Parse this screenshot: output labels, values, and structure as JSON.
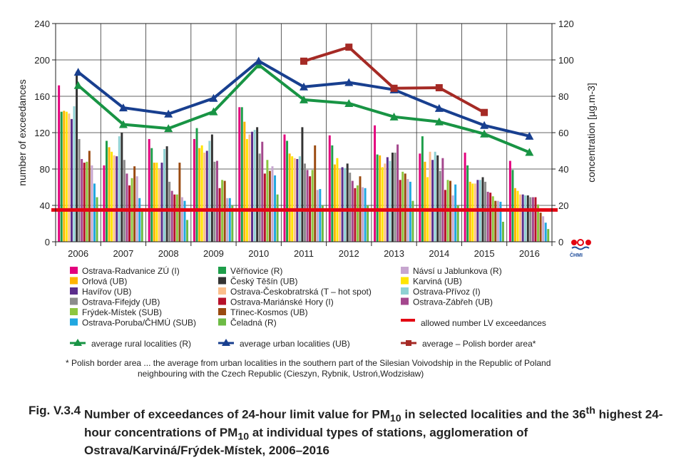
{
  "chart_data": {
    "type": "bar",
    "categories": [
      "2006",
      "2007",
      "2008",
      "2009",
      "2010",
      "2011",
      "2012",
      "2013",
      "2014",
      "2015",
      "2016"
    ],
    "ylabel": "number of exceedances",
    "y2label": "concentration [µg.m-3]",
    "ylim": [
      0,
      240
    ],
    "y2lim": [
      0,
      120
    ],
    "yticks": [
      0,
      40,
      80,
      120,
      160,
      200,
      240
    ],
    "y2ticks": [
      0,
      20,
      40,
      60,
      80,
      100,
      120
    ],
    "grid": true,
    "legend_position": "bottom",
    "bar_series": [
      {
        "name": "Ostrava-Radvanice ZÚ (I)",
        "color": "#e3007d",
        "values": [
          172,
          84,
          113,
          113,
          148,
          118,
          117,
          128,
          97,
          98,
          89
        ]
      },
      {
        "name": "Věřňovice (R)",
        "color": "#1e9e4a",
        "values": [
          143,
          111,
          103,
          125,
          148,
          111,
          106,
          96,
          116,
          84,
          79
        ]
      },
      {
        "name": "Orlová (UB)",
        "color": "#ffb400",
        "values": [
          144,
          104,
          87,
          103,
          132,
          97,
          85,
          95,
          88,
          66,
          59
        ]
      },
      {
        "name": "Karviná (UB)",
        "color": "#ffe500",
        "values": [
          143,
          99,
          87,
          106,
          113,
          94,
          92,
          82,
          71,
          64,
          56
        ]
      },
      {
        "name": "Ostrava-Českobratrská (T – hot spot)",
        "color": "#fbbf8c",
        "values": [
          141,
          95,
          80,
          98,
          118,
          92,
          80,
          86,
          99,
          64,
          52
        ]
      },
      {
        "name": "Havířov (UB)",
        "color": "#5b2d8c",
        "values": [
          135,
          94,
          87,
          100,
          121,
          91,
          82,
          93,
          90,
          68,
          52
        ]
      },
      {
        "name": "Ostrava-Přívoz (I)",
        "color": "#8fd1d3",
        "values": [
          149,
          116,
          102,
          111,
          123,
          94,
          81,
          89,
          99,
          68,
          51
        ]
      },
      {
        "name": "Český Těšín (UB)",
        "color": "#333333",
        "values": [
          187,
          120,
          105,
          118,
          126,
          126,
          86,
          98,
          95,
          71,
          51
        ]
      },
      {
        "name": "Ostrava-Fifejdy (UB)",
        "color": "#8c8c8c",
        "values": [
          113,
          90,
          66,
          88,
          97,
          86,
          76,
          98,
          78,
          66,
          49
        ]
      },
      {
        "name": "Ostrava-Zábřeh (UB)",
        "color": "#a4478d",
        "values": [
          91,
          75,
          56,
          89,
          110,
          79,
          67,
          107,
          92,
          55,
          49
        ]
      },
      {
        "name": "Ostrava-Mariánské Hory (I)",
        "color": "#b7112a",
        "values": [
          87,
          62,
          52,
          59,
          75,
          72,
          59,
          68,
          57,
          54,
          49
        ]
      },
      {
        "name": "Frýdek-Místek (SUB)",
        "color": "#8dc63f",
        "values": [
          88,
          70,
          52,
          68,
          90,
          79,
          62,
          77,
          68,
          50,
          41
        ]
      },
      {
        "name": "Třinec-Kosmos (UB)",
        "color": "#9a4a10",
        "values": [
          100,
          83,
          87,
          67,
          78,
          106,
          72,
          75,
          67,
          45,
          32
        ]
      },
      {
        "name": "Návsí u Jablunkova (R)",
        "color": "#c7a6cf",
        "values": [
          84,
          72,
          49,
          48,
          83,
          57,
          60,
          69,
          51,
          45,
          28
        ]
      },
      {
        "name": "Ostrava-Poruba/ČHMÚ (SUB)",
        "color": "#21a7e0",
        "values": [
          64,
          48,
          45,
          48,
          73,
          58,
          59,
          66,
          63,
          44,
          21
        ]
      },
      {
        "name": "Čeladná (R)",
        "color": "#6dbb45",
        "values": [
          49,
          37,
          24,
          40,
          52,
          40,
          40,
          45,
          40,
          22,
          14
        ]
      }
    ],
    "line_series": [
      {
        "name": "average rural localities (R)",
        "color": "#189444",
        "axis": "right",
        "values": [
          86.0,
          64.5,
          62.3,
          71.5,
          97.3,
          78.1,
          76.1,
          68.7,
          66.0,
          59.3,
          49.2
        ]
      },
      {
        "name": "average urban localities (UB)",
        "color": "#183f8f",
        "axis": "right",
        "values": [
          93.3,
          73.7,
          70.3,
          78.9,
          99.4,
          85.2,
          87.6,
          83.6,
          73.4,
          64.0,
          58.1
        ]
      },
      {
        "name": "average – Polish border area*",
        "color": "#a52a25",
        "axis": "right",
        "values": [
          null,
          null,
          null,
          null,
          null,
          99.3,
          107.0,
          84.4,
          84.7,
          71.1,
          null
        ]
      }
    ],
    "limit_line": {
      "name": "allowed number LV exceedances",
      "color": "#e30613",
      "value": 35
    }
  },
  "logo": {
    "text": "ČHMI"
  },
  "footnote": {
    "line1": "* Polish border area ... the average from urban localities in the southern part of the Silesian Voivodship in the Republic of Poland",
    "line2": "neighbouring with the Czech Republic (Cieszyn, Rybnik, Ustroń,Wodzisław)"
  },
  "caption": {
    "label": "Fig. V.3.4",
    "text_a": "Number of exceedances of 24-hour limit value for PM",
    "sub_a": "10",
    "text_b": " in selected localities and the ",
    "num": "36",
    "sup": "th",
    "text_c": " highest 24-hour concentrations of PM",
    "sub_b": "10",
    "text_d": " at individual types of stations, agglomeration of Ostrava/Karviná/Frýdek-Místek, 2006–2016"
  }
}
